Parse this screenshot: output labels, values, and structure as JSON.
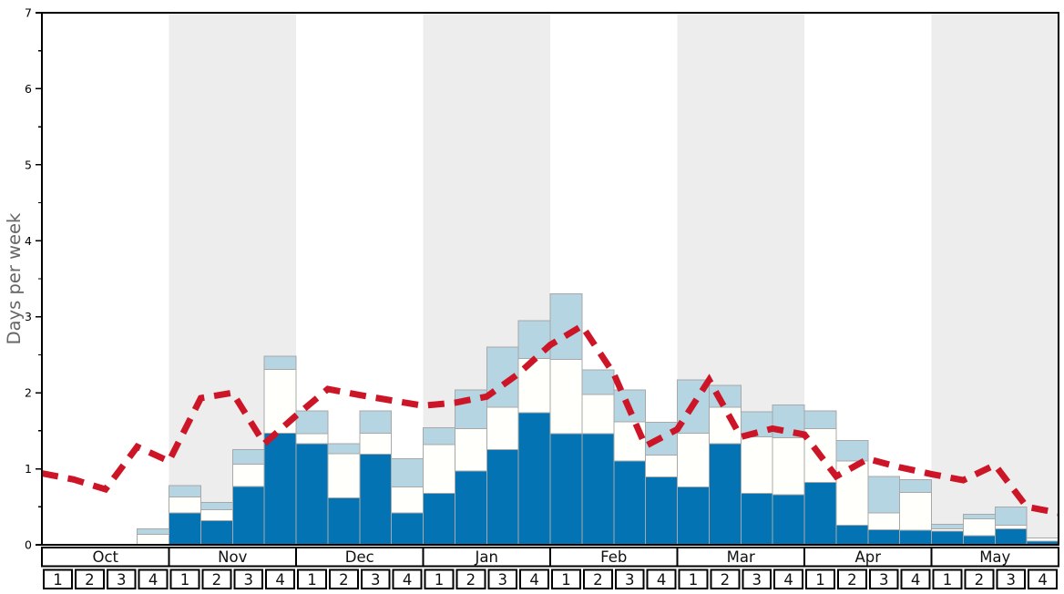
{
  "chart_data": {
    "type": "bar",
    "stacked": true,
    "title": "",
    "ylabel": "Days per week",
    "ylim": [
      0,
      7
    ],
    "ytick_labels": [
      "0",
      "1",
      "2",
      "3",
      "4",
      "5",
      "6",
      "7"
    ],
    "minor_tick_step": 0.5,
    "grid": false,
    "legend": "none",
    "months": [
      "Oct",
      "Nov",
      "Dec",
      "Jan",
      "Feb",
      "Mar",
      "Apr",
      "May"
    ],
    "weeks": [
      "1",
      "2",
      "3",
      "4"
    ],
    "shaded_month_indices": [
      1,
      3,
      5,
      7
    ],
    "colors": {
      "dark_blue": "#0473b3",
      "white_segment": "#fffffb",
      "light_blue": "#b4d5e1",
      "bar_border": "#a8a8a8",
      "month_band": "#ededed",
      "average_line": "#cd1528",
      "frame": "#000000",
      "axis_title": "#666666",
      "tick_label": "#000000",
      "table_border": "#000000",
      "table_fill": "#ffffff"
    },
    "series": [
      {
        "name": "dark-blue-days",
        "values": [
          0,
          0,
          0,
          0,
          0.42,
          0.32,
          0.77,
          1.47,
          1.33,
          0.62,
          1.19,
          0.42,
          0.68,
          0.97,
          1.25,
          1.74,
          1.46,
          1.46,
          1.1,
          0.89,
          0.76,
          1.33,
          0.68,
          0.66,
          0.82,
          0.26,
          0.2,
          0.19,
          0.18,
          0.12,
          0.21,
          0.05
        ]
      },
      {
        "name": "white-days",
        "values": [
          0,
          0,
          0,
          0.14,
          0.21,
          0.14,
          0.29,
          0.84,
          0.13,
          0.58,
          0.28,
          0.34,
          0.64,
          0.56,
          0.56,
          0.71,
          0.98,
          0.52,
          0.52,
          0.29,
          0.71,
          0.48,
          0.74,
          0.75,
          0.71,
          0.84,
          0.22,
          0.5,
          0.03,
          0.22,
          0.05,
          0.04
        ]
      },
      {
        "name": "light-blue-days",
        "values": [
          0,
          0,
          0,
          0.07,
          0.15,
          0.1,
          0.19,
          0.17,
          0.3,
          0.13,
          0.29,
          0.37,
          0.22,
          0.51,
          0.79,
          0.5,
          0.86,
          0.32,
          0.42,
          0.43,
          0.7,
          0.29,
          0.33,
          0.43,
          0.23,
          0.27,
          0.48,
          0.17,
          0.06,
          0.06,
          0.24,
          0
        ]
      }
    ],
    "average_line": {
      "name": "dashed-average-line",
      "dash": [
        18,
        11
      ],
      "width": 7,
      "x_positions": "week-boundaries",
      "values": [
        0.94,
        0.86,
        0.73,
        1.29,
        1.1,
        1.93,
        2.0,
        1.33,
        1.7,
        2.05,
        1.97,
        1.9,
        1.83,
        1.87,
        1.95,
        2.25,
        2.63,
        2.88,
        2.25,
        1.3,
        1.52,
        2.17,
        1.42,
        1.53,
        1.45,
        0.9,
        1.13,
        1.02,
        0.93,
        0.85,
        1.05,
        0.5,
        0.42
      ]
    }
  }
}
